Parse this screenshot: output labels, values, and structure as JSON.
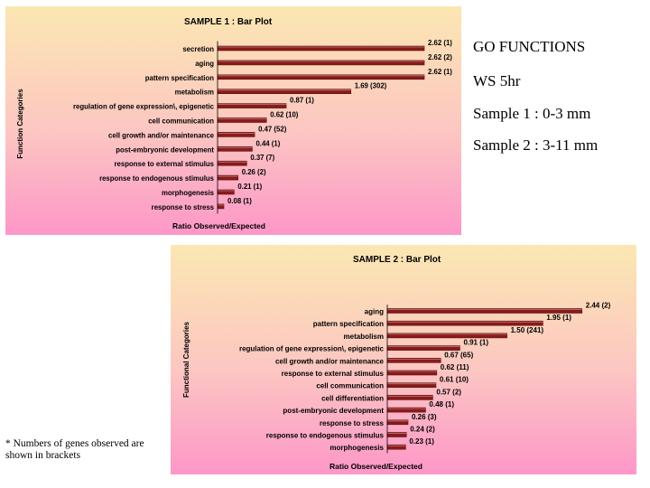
{
  "side_text": {
    "heading": "GO FUNCTIONS",
    "time": "WS 5hr",
    "sample1": "Sample 1 : 0-3 mm",
    "sample2": "Sample 2 : 3-11 mm"
  },
  "footnote": "* Numbers of genes observed are shown in brackets",
  "chart_data": [
    {
      "type": "bar",
      "orientation": "horizontal",
      "title": "SAMPLE 1 : Bar Plot",
      "xlabel": "Ratio Observed/Expected",
      "ylabel": "Function Categories",
      "xlim": [
        0,
        2.7
      ],
      "categories": [
        "secretion",
        "aging",
        "pattern specification",
        "metabolism",
        "regulation of gene expression\\, epigenetic",
        "cell communication",
        "cell growth and/or maintenance",
        "post-embryonic development",
        "response to external stimulus",
        "response to endogenous stimulus",
        "morphogenesis",
        "response to stress"
      ],
      "values": [
        2.62,
        2.62,
        2.62,
        1.69,
        0.87,
        0.62,
        0.47,
        0.44,
        0.37,
        0.26,
        0.21,
        0.08
      ],
      "data_labels": [
        "2.62 (1)",
        "2.62 (2)",
        "2.62 (1)",
        "1.69 (302)",
        "0.87 (1)",
        "0.62 (10)",
        "0.47 (52)",
        "0.44 (1)",
        "0.37 (7)",
        "0.26 (2)",
        "0.21   (1)",
        "0.08 (1)"
      ],
      "bar_color": "#8b1a1a"
    },
    {
      "type": "bar",
      "orientation": "horizontal",
      "title": "SAMPLE 2 : Bar Plot",
      "xlabel": "Ratio Observed/Expected",
      "ylabel": "Functional Categories",
      "xlim": [
        0,
        2.5
      ],
      "categories": [
        "aging",
        "pattern specification",
        "metabolism",
        "regulation of gene expression\\, epigenetic",
        "cell growth and/or maintenance",
        "response to external stimulus",
        "cell communication",
        "cell differentiation",
        "post-embryonic development",
        "response to stress",
        "response to endogenous stimulus",
        "morphogenesis"
      ],
      "values": [
        2.44,
        1.95,
        1.5,
        0.91,
        0.67,
        0.62,
        0.61,
        0.57,
        0.48,
        0.26,
        0.24,
        0.23
      ],
      "data_labels": [
        "2.44 (2)",
        "1.95 (1)",
        "1.50 (241)",
        "0.91 (1)",
        "0.67 (65)",
        "0.62 (11)",
        "0.61 (10)",
        "0.57 (2)",
        "0.48 (1)",
        "0.26 (3)",
        "0.24 (2)",
        "0.23 (1)"
      ],
      "bar_color": "#8b1a1a"
    }
  ]
}
